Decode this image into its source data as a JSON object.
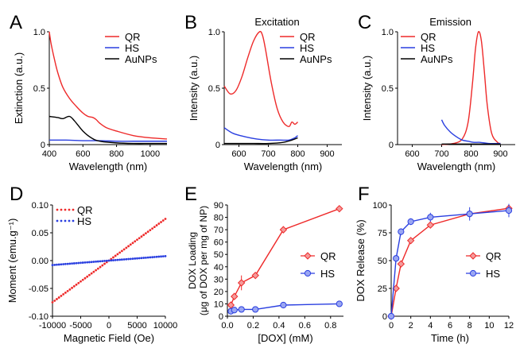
{
  "figure": {
    "colors": {
      "red": "#ee2a2a",
      "blue": "#2a3fe0",
      "black": "#000000"
    }
  },
  "chart_data": [
    {
      "panel_letter": "A",
      "type": "line",
      "title": "",
      "xlabel": "Wavelength (nm)",
      "ylabel": "Extinction (a.u.)",
      "xlim": [
        400,
        1100
      ],
      "ylim": [
        0,
        1.0
      ],
      "xticks": [
        400,
        600,
        800,
        1000
      ],
      "yticks": [
        0,
        0.5,
        1.0
      ],
      "ytick_labels": [
        "0",
        "0.5",
        "1.0"
      ],
      "legend": "top-right",
      "series": [
        {
          "name": "QR",
          "color": "red",
          "x": [
            400,
            410,
            430,
            450,
            480,
            520,
            560,
            600,
            630,
            660,
            680,
            700,
            740,
            800,
            900,
            1000,
            1100
          ],
          "y": [
            1.0,
            0.9,
            0.76,
            0.64,
            0.51,
            0.41,
            0.34,
            0.28,
            0.25,
            0.24,
            0.22,
            0.19,
            0.15,
            0.12,
            0.08,
            0.06,
            0.05
          ]
        },
        {
          "name": "HS",
          "color": "blue",
          "x": [
            400,
            500,
            600,
            700,
            800,
            900,
            1000,
            1100
          ],
          "y": [
            0.04,
            0.04,
            0.035,
            0.035,
            0.03,
            0.03,
            0.03,
            0.03
          ]
        },
        {
          "name": "AuNPs",
          "color": "black",
          "x": [
            400,
            450,
            480,
            520,
            550,
            600,
            650,
            700,
            800,
            900,
            1000,
            1100
          ],
          "y": [
            0.25,
            0.24,
            0.23,
            0.25,
            0.21,
            0.12,
            0.06,
            0.03,
            0.015,
            0.01,
            0.01,
            0.01
          ]
        }
      ]
    },
    {
      "panel_letter": "B",
      "type": "line",
      "title": "Excitation",
      "xlabel": "Wavelength (nm)",
      "ylabel": "Intensity (a.u.)",
      "xlim": [
        550,
        950
      ],
      "ylim": [
        0,
        1.0
      ],
      "xticks": [
        600,
        700,
        800,
        900
      ],
      "yticks": [
        0,
        0.5,
        1.0
      ],
      "ytick_labels": [
        "0",
        "0.5",
        "1.0"
      ],
      "legend": "top-right",
      "series": [
        {
          "name": "QR",
          "color": "red",
          "x": [
            550,
            570,
            590,
            610,
            630,
            650,
            670,
            680,
            690,
            710,
            730,
            750,
            770,
            780,
            790,
            800
          ],
          "y": [
            0.52,
            0.45,
            0.48,
            0.6,
            0.77,
            0.92,
            1.0,
            0.97,
            0.85,
            0.55,
            0.32,
            0.2,
            0.16,
            0.2,
            0.18,
            0.2
          ]
        },
        {
          "name": "HS",
          "color": "blue",
          "x": [
            550,
            580,
            620,
            660,
            700,
            740,
            770,
            790,
            800
          ],
          "y": [
            0.15,
            0.1,
            0.07,
            0.05,
            0.04,
            0.04,
            0.04,
            0.06,
            0.08
          ]
        },
        {
          "name": "AuNPs",
          "color": "black",
          "x": [
            550,
            600,
            650,
            700,
            750,
            780,
            800
          ],
          "y": [
            0.01,
            0.01,
            0.01,
            0.01,
            0.02,
            0.04,
            0.06
          ]
        }
      ]
    },
    {
      "panel_letter": "C",
      "type": "line",
      "title": "Emission",
      "xlabel": "Wavelength (nm)",
      "ylabel": "Intensity (a.u.)",
      "xlim": [
        550,
        950
      ],
      "ylim": [
        0,
        1.0
      ],
      "xticks": [
        600,
        700,
        800,
        900
      ],
      "yticks": [
        0,
        0.5,
        1.0
      ],
      "ytick_labels": [
        "0",
        "0.5",
        "1.0"
      ],
      "legend": "top-left",
      "series": [
        {
          "name": "QR",
          "color": "red",
          "x": [
            700,
            740,
            770,
            790,
            805,
            815,
            825,
            835,
            845,
            855,
            870,
            890,
            900
          ],
          "y": [
            0.0,
            0.01,
            0.05,
            0.2,
            0.55,
            0.85,
            1.0,
            0.92,
            0.65,
            0.35,
            0.1,
            0.02,
            0.01
          ]
        },
        {
          "name": "HS",
          "color": "blue",
          "x": [
            700,
            710,
            730,
            750,
            770,
            790,
            810,
            830,
            860,
            900
          ],
          "y": [
            0.22,
            0.17,
            0.11,
            0.07,
            0.04,
            0.03,
            0.02,
            0.02,
            0.01,
            0.01
          ]
        },
        {
          "name": "AuNPs",
          "color": "black",
          "x": [
            700,
            760,
            820,
            880,
            900
          ],
          "y": [
            0.005,
            0.005,
            0.005,
            0.005,
            0.005
          ]
        }
      ]
    },
    {
      "panel_letter": "D",
      "type": "scatter",
      "title": "",
      "xlabel": "Magnetic Field (Oe)",
      "ylabel": "Moment (emu.g⁻¹)",
      "xlim": [
        -10000,
        10000
      ],
      "ylim": [
        -0.1,
        0.1
      ],
      "xticks": [
        -10000,
        -5000,
        0,
        5000,
        10000
      ],
      "xtick_labels": [
        "-10000",
        "-5000",
        "0",
        "5000",
        "10000"
      ],
      "yticks": [
        -0.1,
        -0.05,
        0,
        0.05,
        0.1
      ],
      "ytick_labels": [
        "-0.10",
        "-0.05",
        "0.00",
        "0.05",
        "0.10"
      ],
      "legend": "top-left",
      "series": [
        {
          "name": "QR",
          "color": "red",
          "marker": "dash-dot",
          "slope": 7.5e-06,
          "intercept": 0
        },
        {
          "name": "HS",
          "color": "blue",
          "marker": "dash-dot",
          "slope": 8e-07,
          "intercept": 0
        }
      ]
    },
    {
      "panel_letter": "E",
      "type": "line",
      "title": "",
      "xlabel": "[DOX] (mM)",
      "ylabel": "DOX Loading",
      "ylabel2": "(μg of DOX per mg of NP)",
      "xlim": [
        0,
        0.9
      ],
      "ylim": [
        0,
        90
      ],
      "xticks": [
        0,
        0.2,
        0.4,
        0.6,
        0.8
      ],
      "xtick_labels": [
        "0.0",
        "0.2",
        "0.4",
        "0.6",
        "0.8"
      ],
      "yticks": [
        0,
        10,
        20,
        30,
        40,
        50,
        60,
        70,
        80,
        90
      ],
      "legend": "right",
      "series": [
        {
          "name": "QR",
          "color": "red",
          "marker": "diamond",
          "x": [
            0.027,
            0.054,
            0.109,
            0.217,
            0.434,
            0.868
          ],
          "y": [
            9,
            16,
            27,
            33,
            70,
            87
          ],
          "err": [
            1.5,
            1.5,
            6,
            2,
            2,
            1
          ]
        },
        {
          "name": "HS",
          "color": "blue",
          "marker": "circle",
          "x": [
            0.027,
            0.054,
            0.109,
            0.217,
            0.434,
            0.868
          ],
          "y": [
            4,
            5,
            5.5,
            5.5,
            9,
            10
          ],
          "err": [
            0.5,
            0.5,
            0.5,
            0.5,
            1,
            1
          ]
        }
      ]
    },
    {
      "panel_letter": "F",
      "type": "line",
      "title": "",
      "xlabel": "Time (h)",
      "ylabel": "DOX Release (%)",
      "xlim": [
        0,
        12
      ],
      "ylim": [
        0,
        100
      ],
      "xticks": [
        0,
        2,
        4,
        6,
        8,
        10,
        12
      ],
      "yticks": [
        0,
        25,
        50,
        75,
        100
      ],
      "legend": "right",
      "series": [
        {
          "name": "QR",
          "color": "red",
          "marker": "diamond",
          "x": [
            0,
            0.5,
            1,
            2,
            4,
            8,
            12
          ],
          "y": [
            0,
            25,
            47,
            68,
            82,
            92,
            97
          ],
          "err": [
            0,
            2,
            2,
            2,
            2,
            3,
            2
          ]
        },
        {
          "name": "HS",
          "color": "blue",
          "marker": "circle",
          "x": [
            0,
            0.5,
            1,
            2,
            4,
            8,
            12
          ],
          "y": [
            0,
            52,
            76,
            85,
            89,
            92,
            95
          ],
          "err": [
            0,
            3,
            3,
            3,
            4,
            6,
            6
          ]
        }
      ]
    }
  ]
}
